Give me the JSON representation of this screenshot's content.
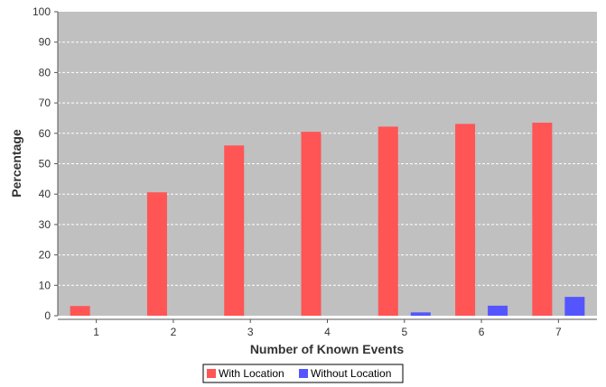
{
  "chart_data": {
    "type": "bar",
    "title": "",
    "xlabel": "Number of Known Events",
    "ylabel": "Percentage",
    "categories": [
      "1",
      "2",
      "3",
      "4",
      "5",
      "6",
      "7"
    ],
    "series": [
      {
        "name": "With Location",
        "color": "#ff5555",
        "values": [
          3.2,
          40.6,
          56.0,
          60.5,
          62.2,
          63.1,
          63.5
        ]
      },
      {
        "name": "Without Location",
        "color": "#5555ff",
        "values": [
          0,
          0,
          0,
          0,
          1.1,
          3.3,
          6.2
        ]
      }
    ],
    "yticks": [
      0,
      10,
      20,
      30,
      40,
      50,
      60,
      70,
      80,
      90,
      100
    ],
    "ylim": [
      0,
      100
    ],
    "grid": true,
    "legend_position": "bottom-center",
    "plot_background": "#c0c0c0"
  }
}
